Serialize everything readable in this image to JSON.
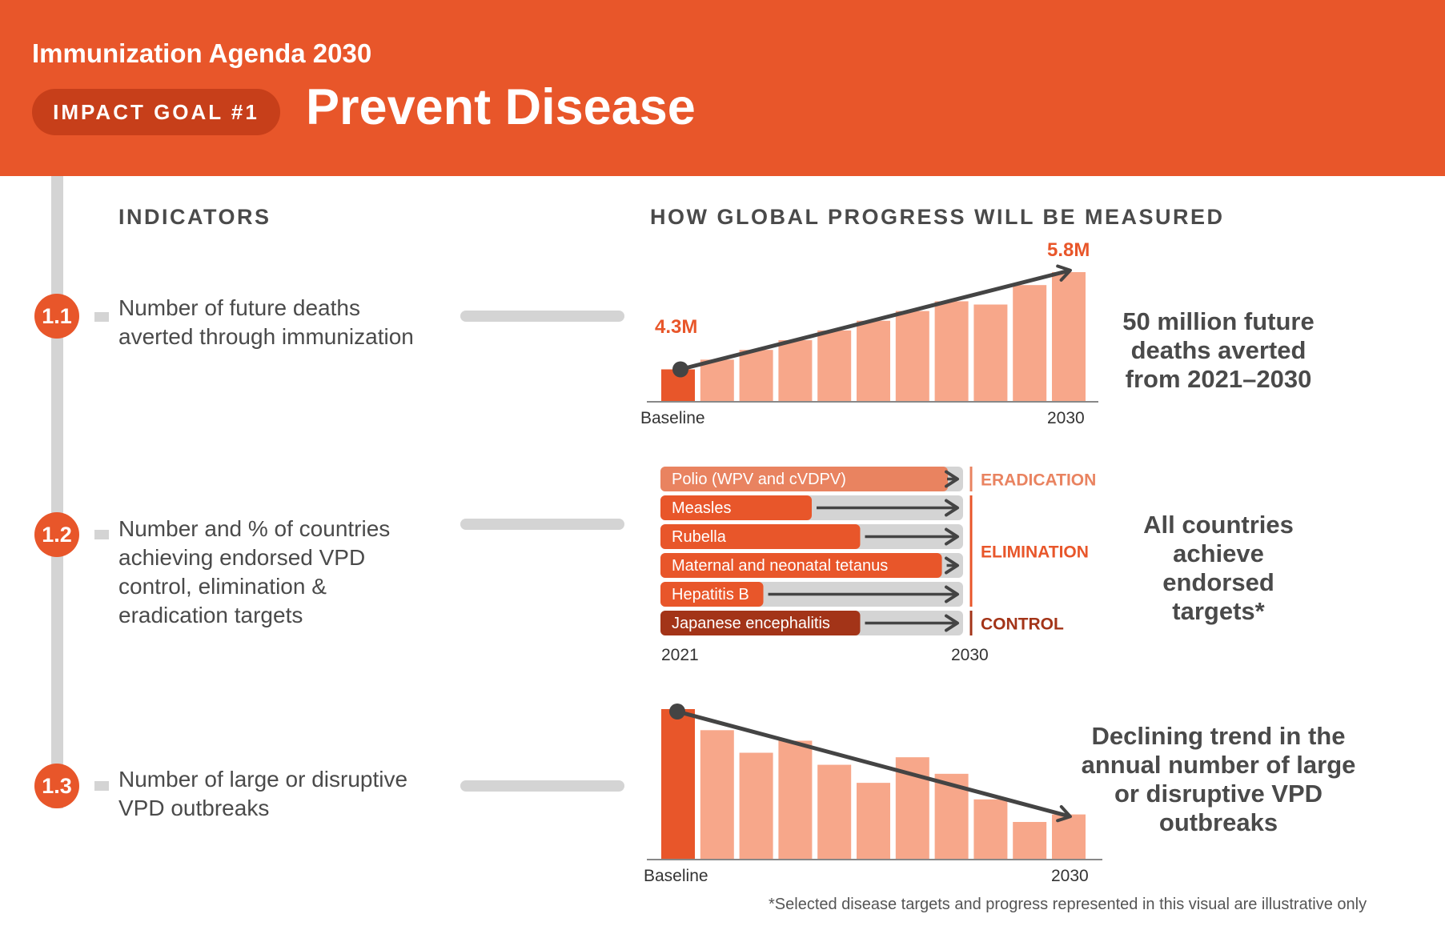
{
  "header": {
    "agenda_title": "Immunization Agenda 2030",
    "goal_badge": "IMPACT GOAL #1",
    "goal_title": "Prevent Disease"
  },
  "sections": {
    "indicators": "INDICATORS",
    "measured": "HOW GLOBAL PROGRESS WILL BE MEASURED"
  },
  "indicators": [
    {
      "number": "1.1",
      "text": "Number of future deaths\naverted through immunization"
    },
    {
      "number": "1.2",
      "text": "Number and % of countries\nachieving endorsed VPD\ncontrol, elimination &\neradication targets"
    },
    {
      "number": "1.3",
      "text": "Number of large or disruptive\nVPD outbreaks"
    }
  ],
  "targets": [
    "50 million future\ndeaths averted\nfrom 2021–2030",
    "All countries\nachieve\nendorsed\ntargets*",
    "Declining trend in the\nannual number of large\nor disruptive VPD\noutbreaks"
  ],
  "footnote": "*Selected disease targets and progress represented in this visual are illustrative only",
  "colors": {
    "brand_orange": "#e8562a",
    "light_bar": "#f7a78a",
    "eradication": "#e98360",
    "control": "#a33418",
    "track_grey": "#d4d4d4",
    "arrow": "#444444"
  },
  "chart_data": [
    {
      "type": "bar",
      "name": "deaths-averted",
      "categories": [
        "Baseline",
        "",
        "",
        "",
        "",
        "",
        "",
        "",
        "",
        "",
        "2030"
      ],
      "values": [
        4.3,
        4.45,
        4.6,
        4.75,
        4.9,
        5.05,
        5.2,
        5.35,
        5.3,
        5.6,
        5.8
      ],
      "start_label": "4.3M",
      "end_label": "5.8M",
      "x_start_label": "Baseline",
      "x_end_label": "2030",
      "trend": "increasing"
    },
    {
      "type": "bar",
      "name": "vpd-targets",
      "orientation": "horizontal",
      "x_start_label": "2021",
      "x_end_label": "2030",
      "categories": [
        "Polio (WPV and cVDPV)",
        "Measles",
        "Rubella",
        "Maternal and neonatal tetanus",
        "Hepatitis B",
        "Japanese encephalitis"
      ],
      "progress": [
        0.95,
        0.5,
        0.66,
        0.93,
        0.34,
        0.66
      ],
      "target_groups": [
        {
          "label": "ERADICATION",
          "rows": [
            0
          ]
        },
        {
          "label": "ELIMINATION",
          "rows": [
            1,
            2,
            3,
            4
          ]
        },
        {
          "label": "CONTROL",
          "rows": [
            5
          ]
        }
      ]
    },
    {
      "type": "bar",
      "name": "outbreaks",
      "categories": [
        "Baseline",
        "",
        "",
        "",
        "",
        "",
        "",
        "",
        "",
        "",
        "2030"
      ],
      "values": [
        100,
        86,
        71,
        79,
        63,
        51,
        68,
        57,
        40,
        25,
        30
      ],
      "x_start_label": "Baseline",
      "x_end_label": "2030",
      "trend": "declining"
    }
  ]
}
